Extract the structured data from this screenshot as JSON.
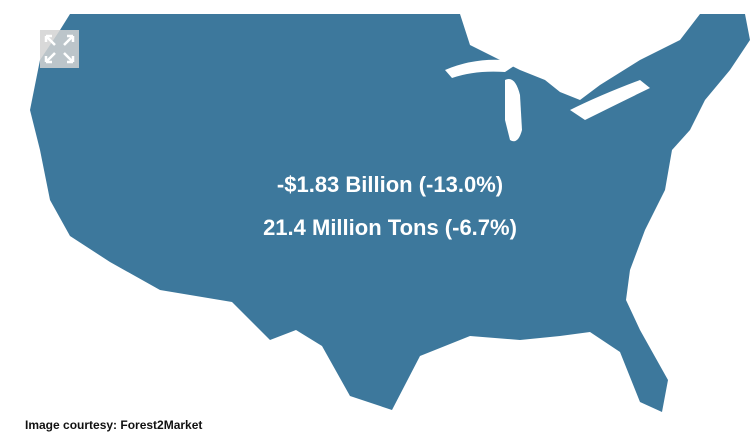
{
  "map": {
    "fill_color": "#3d789c",
    "stat_value": "-$1.83 Billion (-13.0%)",
    "stat_volume": "21.4 Million Tons (-6.7%)"
  },
  "expand_button": {
    "icon": "expand-arrows-icon"
  },
  "caption": "Image courtesy: Forest2Market"
}
